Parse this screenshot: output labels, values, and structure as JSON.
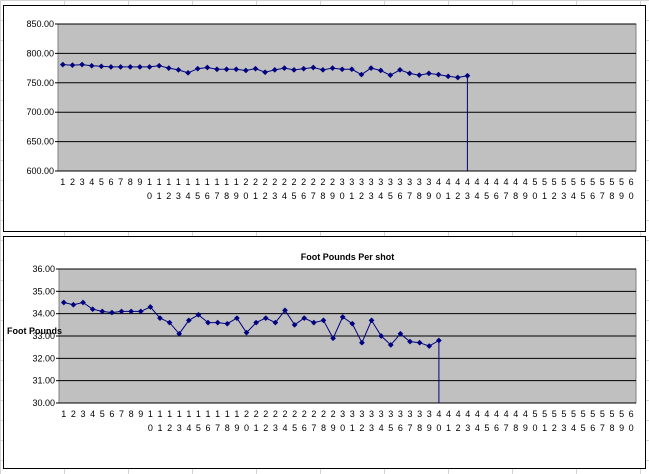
{
  "colors": {
    "plot_area": "#c0c0c0",
    "gridline": "#000000",
    "series": "#000080",
    "frame": "#000000",
    "sheet_grid": "#d4d4d4"
  },
  "chart_data": [
    {
      "type": "line",
      "title": "",
      "xlabel": "",
      "ylabel": "",
      "ylim": [
        600,
        850
      ],
      "y_ticks": [
        "850.00",
        "800.00",
        "750.00",
        "700.00",
        "650.00",
        "600.00"
      ],
      "x_count": 60,
      "grid": true,
      "legend": "none",
      "series": [
        {
          "values": [
            781,
            780,
            781,
            779,
            778,
            777,
            777,
            777,
            777,
            777,
            779,
            775,
            772,
            767,
            774,
            776,
            773,
            773,
            773,
            771,
            774,
            768,
            772,
            775,
            772,
            774,
            776,
            772,
            775,
            773,
            773,
            764,
            775,
            771,
            763,
            772,
            766,
            763,
            766,
            764,
            761,
            759,
            762
          ],
          "drop_to": 600
        }
      ]
    },
    {
      "type": "line",
      "title": "Foot Pounds Per shot",
      "xlabel": "",
      "ylabel": "Foot Pounds",
      "ylim": [
        30,
        36
      ],
      "y_ticks": [
        "36.00",
        "35.00",
        "34.00",
        "33.00",
        "32.00",
        "31.00",
        "30.00"
      ],
      "x_count": 60,
      "grid": true,
      "legend": "none",
      "series": [
        {
          "values": [
            34.5,
            34.4,
            34.5,
            34.2,
            34.1,
            34.05,
            34.1,
            34.1,
            34.1,
            34.3,
            33.8,
            33.6,
            33.1,
            33.7,
            33.95,
            33.6,
            33.6,
            33.55,
            33.8,
            33.15,
            33.6,
            33.8,
            33.6,
            34.15,
            33.5,
            33.8,
            33.6,
            33.7,
            32.9,
            33.85,
            33.55,
            32.7,
            33.7,
            33.0,
            32.6,
            33.1,
            32.75,
            32.7,
            32.55,
            32.8
          ],
          "drop_to": 30
        }
      ]
    }
  ]
}
